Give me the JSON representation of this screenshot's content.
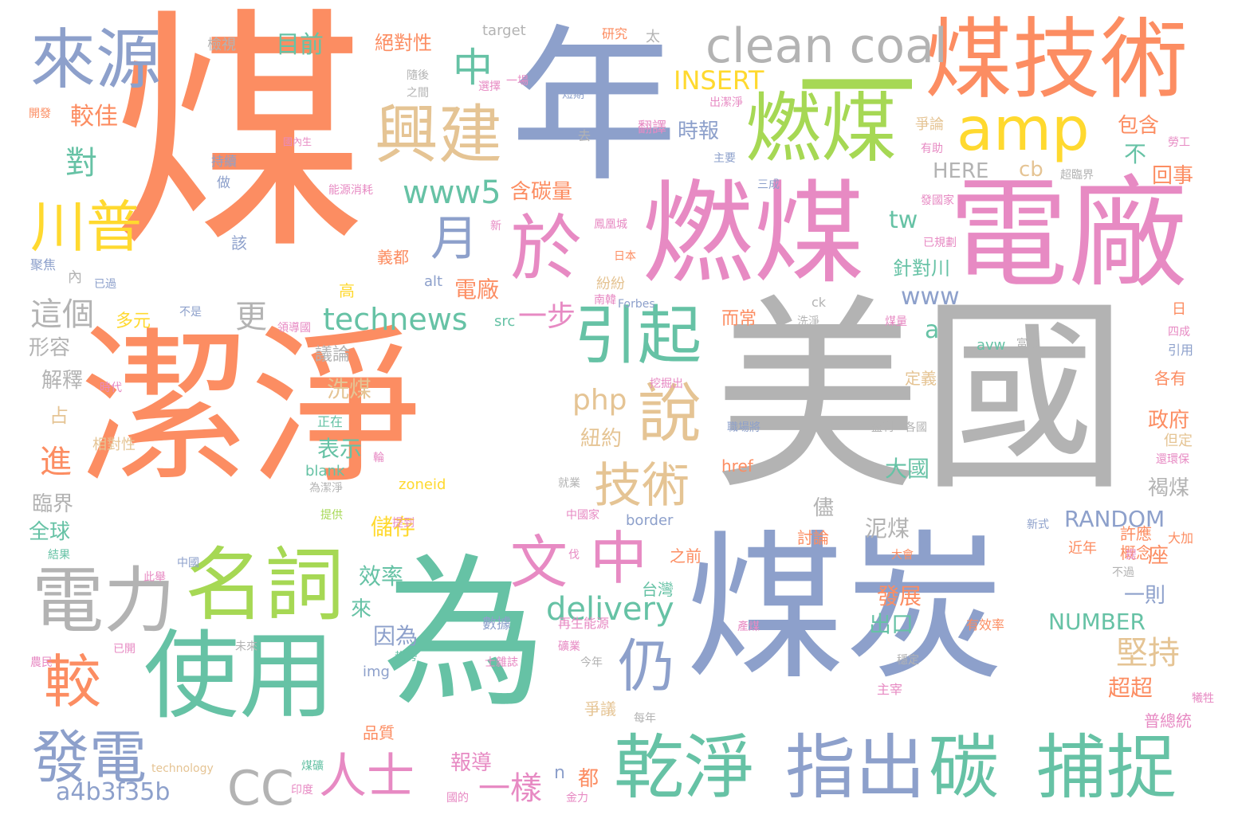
{
  "palette": {
    "orange": "#fc8d62",
    "blue": "#8da0cb",
    "green": "#66c2a5",
    "pink": "#e78ac3",
    "lime": "#a6d854",
    "yellow": "#ffd92f",
    "tan": "#e5c494",
    "gray": "#b3b3b3"
  },
  "words": [
    {
      "text": "煤",
      "color": "orange"
    },
    {
      "text": "年",
      "color": "blue"
    },
    {
      "text": "美國",
      "color": "gray"
    },
    {
      "text": "潔淨",
      "color": "orange"
    },
    {
      "text": "煤炭",
      "color": "blue"
    },
    {
      "text": "為",
      "color": "green"
    },
    {
      "text": "煤技術",
      "color": "orange"
    },
    {
      "text": "電廠",
      "color": "pink"
    },
    {
      "text": "燃煤",
      "color": "pink"
    },
    {
      "text": "燃煤",
      "color": "lime"
    },
    {
      "text": "clean coal",
      "color": "gray"
    },
    {
      "text": "一",
      "color": "lime"
    },
    {
      "text": "amp",
      "color": "yellow"
    },
    {
      "text": "興建",
      "color": "tan"
    },
    {
      "text": "來源",
      "color": "blue"
    },
    {
      "text": "於",
      "color": "pink"
    },
    {
      "text": "使用",
      "color": "green"
    },
    {
      "text": "名詞",
      "color": "lime"
    },
    {
      "text": "電力",
      "color": "gray"
    },
    {
      "text": "乾淨",
      "color": "green"
    },
    {
      "text": "指出",
      "color": "blue"
    },
    {
      "text": "碳",
      "color": "green"
    },
    {
      "text": "捕捉",
      "color": "green"
    },
    {
      "text": "川普",
      "color": "yellow"
    },
    {
      "text": "引起",
      "color": "green"
    },
    {
      "text": "說",
      "color": "tan"
    },
    {
      "text": "技術",
      "color": "tan"
    },
    {
      "text": "文",
      "color": "pink"
    },
    {
      "text": "中",
      "color": "pink"
    },
    {
      "text": "仍",
      "color": "blue"
    },
    {
      "text": "較",
      "color": "orange"
    },
    {
      "text": "發電",
      "color": "blue"
    },
    {
      "text": "CC",
      "color": "gray"
    },
    {
      "text": "人士",
      "color": "pink"
    },
    {
      "text": "月",
      "color": "blue"
    },
    {
      "text": "中",
      "color": "green"
    },
    {
      "text": "www5",
      "color": "green"
    },
    {
      "text": "technews",
      "color": "green"
    },
    {
      "text": "delivery",
      "color": "green"
    },
    {
      "text": "php",
      "color": "tan"
    },
    {
      "text": "堅持",
      "color": "tan"
    },
    {
      "text": "a4b3f35b",
      "color": "blue"
    },
    {
      "text": "一樣",
      "color": "pink"
    },
    {
      "text": "這個",
      "color": "gray"
    },
    {
      "text": "更",
      "color": "gray"
    },
    {
      "text": "對",
      "color": "green"
    },
    {
      "text": "進",
      "color": "orange"
    },
    {
      "text": "INSERT",
      "color": "yellow"
    },
    {
      "text": "www",
      "color": "blue"
    },
    {
      "text": "tw",
      "color": "green"
    },
    {
      "text": "cb",
      "color": "tan"
    },
    {
      "text": "HERE",
      "color": "gray"
    },
    {
      "text": "RANDOM",
      "color": "blue"
    },
    {
      "text": "NUMBER",
      "color": "green"
    },
    {
      "text": "a",
      "color": "green"
    },
    {
      "text": "一步",
      "color": "pink"
    },
    {
      "text": "電廠",
      "color": "orange"
    },
    {
      "text": "目前",
      "color": "green"
    },
    {
      "text": "較佳",
      "color": "orange"
    },
    {
      "text": "絕對性",
      "color": "orange"
    },
    {
      "text": "時報",
      "color": "blue"
    },
    {
      "text": "含碳量",
      "color": "orange"
    },
    {
      "text": "包含",
      "color": "orange"
    },
    {
      "text": "回事",
      "color": "orange"
    },
    {
      "text": "不",
      "color": "green"
    },
    {
      "text": "針對川",
      "color": "green"
    },
    {
      "text": "政府",
      "color": "orange"
    },
    {
      "text": "褐煤",
      "color": "gray"
    },
    {
      "text": "大國",
      "color": "green"
    },
    {
      "text": "泥煤",
      "color": "gray"
    },
    {
      "text": "發展",
      "color": "orange"
    },
    {
      "text": "出口",
      "color": "green"
    },
    {
      "text": "一則",
      "color": "blue"
    },
    {
      "text": "超超",
      "color": "orange"
    },
    {
      "text": "因為",
      "color": "blue"
    },
    {
      "text": "效率",
      "color": "green"
    },
    {
      "text": "來",
      "color": "green"
    },
    {
      "text": "儲存",
      "color": "yellow"
    },
    {
      "text": "儘",
      "color": "gray"
    },
    {
      "text": "洗煤",
      "color": "tan"
    },
    {
      "text": "表示",
      "color": "green"
    },
    {
      "text": "紐約",
      "color": "tan"
    },
    {
      "text": "議論",
      "color": "gray"
    },
    {
      "text": "解釋",
      "color": "gray"
    },
    {
      "text": "形容",
      "color": "gray"
    },
    {
      "text": "多元",
      "color": "yellow"
    },
    {
      "text": "占",
      "color": "tan"
    },
    {
      "text": "臨界",
      "color": "gray"
    },
    {
      "text": "全球",
      "color": "green"
    },
    {
      "text": "座",
      "color": "orange"
    },
    {
      "text": "報導",
      "color": "pink"
    },
    {
      "text": "都",
      "color": "orange"
    },
    {
      "text": "n",
      "color": "blue"
    },
    {
      "text": "檢視",
      "color": "gray"
    },
    {
      "text": "target",
      "color": "gray"
    },
    {
      "text": "義都",
      "color": "orange"
    },
    {
      "text": "高",
      "color": "yellow"
    },
    {
      "text": "內",
      "color": "gray"
    },
    {
      "text": "該",
      "color": "blue"
    },
    {
      "text": "做",
      "color": "blue"
    },
    {
      "text": "持續",
      "color": "blue"
    },
    {
      "text": "能源消耗",
      "color": "pink"
    },
    {
      "text": "國內生",
      "color": "pink"
    },
    {
      "text": "翻譯",
      "color": "pink"
    },
    {
      "text": "紛紛",
      "color": "tan"
    },
    {
      "text": "而常",
      "color": "orange"
    },
    {
      "text": "src",
      "color": "green"
    },
    {
      "text": "alt",
      "color": "blue"
    },
    {
      "text": "blank",
      "color": "green"
    },
    {
      "text": "zoneid",
      "color": "yellow"
    },
    {
      "text": "border",
      "color": "blue"
    },
    {
      "text": "img",
      "color": "blue"
    },
    {
      "text": "href",
      "color": "orange"
    },
    {
      "text": "avw",
      "color": "green"
    },
    {
      "text": "ck",
      "color": "gray"
    },
    {
      "text": "定義",
      "color": "tan"
    },
    {
      "text": "各有",
      "color": "orange"
    },
    {
      "text": "但定",
      "color": "tan"
    },
    {
      "text": "大加",
      "color": "orange"
    },
    {
      "text": "許應",
      "color": "orange"
    },
    {
      "text": "概念",
      "color": "orange"
    },
    {
      "text": "討論",
      "color": "orange"
    },
    {
      "text": "之前",
      "color": "orange"
    },
    {
      "text": "台灣",
      "color": "green"
    },
    {
      "text": "數據",
      "color": "blue"
    },
    {
      "text": "再生能源",
      "color": "pink"
    },
    {
      "text": "爭議",
      "color": "tan"
    },
    {
      "text": "品質",
      "color": "orange"
    },
    {
      "text": "近年",
      "color": "orange"
    },
    {
      "text": "普總統",
      "color": "pink"
    },
    {
      "text": "日",
      "color": "orange"
    },
    {
      "text": "引用",
      "color": "blue"
    },
    {
      "text": "technology",
      "color": "tan"
    },
    {
      "text": "主要",
      "color": "blue"
    },
    {
      "text": "爭論",
      "color": "tan"
    },
    {
      "text": "勞工",
      "color": "pink"
    },
    {
      "text": "已規劃",
      "color": "pink"
    },
    {
      "text": "超臨界",
      "color": "gray"
    },
    {
      "text": "出潔淨",
      "color": "pink"
    },
    {
      "text": "研究",
      "color": "orange"
    },
    {
      "text": "太",
      "color": "gray"
    },
    {
      "text": "短期",
      "color": "blue"
    },
    {
      "text": "Forbes",
      "color": "blue"
    },
    {
      "text": "中國家",
      "color": "pink"
    },
    {
      "text": "中國",
      "color": "blue"
    },
    {
      "text": "時代",
      "color": "pink"
    },
    {
      "text": "相對性",
      "color": "tan"
    },
    {
      "text": "正在",
      "color": "green"
    },
    {
      "text": "提供",
      "color": "lime"
    },
    {
      "text": "結果",
      "color": "green"
    },
    {
      "text": "此舉",
      "color": "pink"
    },
    {
      "text": "未來",
      "color": "gray"
    },
    {
      "text": "已開",
      "color": "pink"
    },
    {
      "text": "聚焦",
      "color": "blue"
    },
    {
      "text": "已過",
      "color": "blue"
    },
    {
      "text": "不是",
      "color": "blue"
    },
    {
      "text": "領導國",
      "color": "pink"
    },
    {
      "text": "開發",
      "color": "orange"
    },
    {
      "text": "之間",
      "color": "gray"
    },
    {
      "text": "一場",
      "color": "pink"
    },
    {
      "text": "選擇",
      "color": "pink"
    },
    {
      "text": "去",
      "color": "gray"
    },
    {
      "text": "鳳凰城",
      "color": "pink"
    },
    {
      "text": "日本",
      "color": "orange"
    },
    {
      "text": "新",
      "color": "pink"
    },
    {
      "text": "南韓",
      "color": "pink"
    },
    {
      "text": "洗淨",
      "color": "gray"
    },
    {
      "text": "煤量",
      "color": "pink"
    },
    {
      "text": "富比",
      "color": "gray"
    },
    {
      "text": "四成",
      "color": "pink"
    },
    {
      "text": "各國",
      "color": "gray"
    },
    {
      "text": "盈利",
      "color": "gray"
    },
    {
      "text": "職場將",
      "color": "blue"
    },
    {
      "text": "挖掘出",
      "color": "pink"
    },
    {
      "text": "有助",
      "color": "pink"
    },
    {
      "text": "發國家",
      "color": "pink"
    },
    {
      "text": "三成",
      "color": "blue"
    },
    {
      "text": "還環保",
      "color": "pink"
    },
    {
      "text": "新式",
      "color": "blue"
    },
    {
      "text": "不過",
      "color": "gray"
    },
    {
      "text": "有效率",
      "color": "orange"
    },
    {
      "text": "產煤",
      "color": "pink"
    },
    {
      "text": "穩定",
      "color": "gray"
    },
    {
      "text": "主宰",
      "color": "pink"
    },
    {
      "text": "每年",
      "color": "gray"
    },
    {
      "text": "今年",
      "color": "gray"
    },
    {
      "text": "金力",
      "color": "pink"
    },
    {
      "text": "國的",
      "color": "pink"
    },
    {
      "text": "趨勢",
      "color": "green"
    },
    {
      "text": "士雜誌",
      "color": "pink"
    },
    {
      "text": "提到",
      "color": "pink"
    },
    {
      "text": "伐",
      "color": "pink"
    },
    {
      "text": "就業",
      "color": "gray"
    },
    {
      "text": "為潔淨",
      "color": "gray"
    },
    {
      "text": "輪",
      "color": "pink"
    },
    {
      "text": "煤礦",
      "color": "green"
    },
    {
      "text": "印度",
      "color": "pink"
    },
    {
      "text": "農民",
      "color": "pink"
    },
    {
      "text": "犧牲",
      "color": "pink"
    },
    {
      "text": "大會",
      "color": "orange"
    },
    {
      "text": "提",
      "color": "pink"
    },
    {
      "text": "礦業",
      "color": "pink"
    },
    {
      "text": "隨後",
      "color": "gray"
    }
  ]
}
